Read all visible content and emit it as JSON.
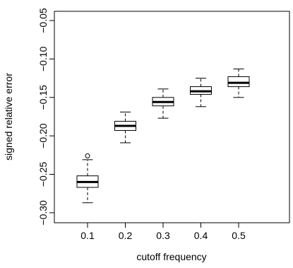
{
  "chart_data": {
    "type": "box",
    "xlabel": "cutoff frequency",
    "ylabel": "signed relative error",
    "categories": [
      "0.1",
      "0.2",
      "0.3",
      "0.4",
      "0.5"
    ],
    "yticks": [
      -0.3,
      -0.25,
      -0.2,
      -0.15,
      -0.1,
      -0.05
    ],
    "ytick_labels": [
      "−0.30",
      "−0.25",
      "−0.20",
      "−0.15",
      "−0.10",
      "−0.05"
    ],
    "ylim": [
      -0.313,
      -0.038
    ],
    "boxes": [
      {
        "category": "0.1",
        "whisker_low": -0.287,
        "q1": -0.267,
        "median": -0.26,
        "q3": -0.252,
        "whisker_high": -0.231,
        "outliers": [
          -0.226
        ]
      },
      {
        "category": "0.2",
        "whisker_low": -0.209,
        "q1": -0.193,
        "median": -0.187,
        "q3": -0.181,
        "whisker_high": -0.169,
        "outliers": []
      },
      {
        "category": "0.3",
        "whisker_low": -0.177,
        "q1": -0.161,
        "median": -0.156,
        "q3": -0.15,
        "whisker_high": -0.139,
        "outliers": []
      },
      {
        "category": "0.4",
        "whisker_low": -0.162,
        "q1": -0.146,
        "median": -0.142,
        "q3": -0.136,
        "whisker_high": -0.125,
        "outliers": []
      },
      {
        "category": "0.5",
        "whisker_low": -0.15,
        "q1": -0.136,
        "median": -0.131,
        "q3": -0.123,
        "whisker_high": -0.113,
        "outliers": []
      }
    ],
    "colors": {
      "stroke": "#000000",
      "fill": "#ffffff"
    },
    "grid": false
  }
}
